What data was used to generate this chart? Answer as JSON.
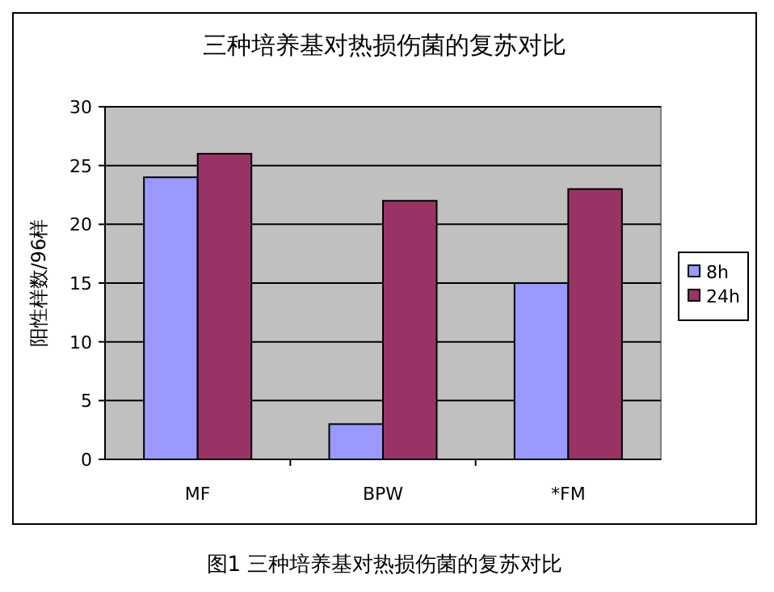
{
  "chart_data": {
    "type": "bar",
    "title": "三种培养基对热损伤菌的复苏对比",
    "ylabel": "阳性样数/96样",
    "categories": [
      "MF",
      "BPW",
      "*FM"
    ],
    "series": [
      {
        "name": "8h",
        "color": "#9999ff",
        "values": [
          24,
          3,
          15
        ]
      },
      {
        "name": "24h",
        "color": "#993366",
        "values": [
          26,
          22,
          23
        ]
      }
    ],
    "ylim": [
      0,
      30
    ],
    "yticks": [
      0,
      5,
      10,
      15,
      20,
      25,
      30
    ],
    "grid": "y",
    "legend": "right",
    "annotations": [
      "图1 三种培养基对热损伤菌的复苏对比"
    ]
  }
}
